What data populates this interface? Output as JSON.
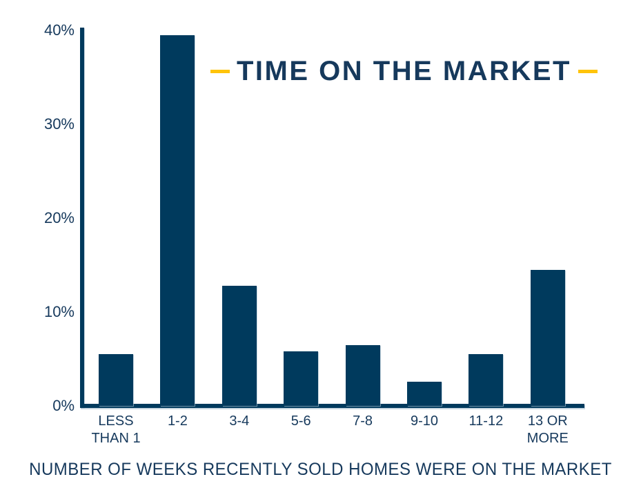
{
  "chart_data": {
    "type": "bar",
    "title": "TIME ON THE MARKET",
    "xlabel": "NUMBER OF WEEKS RECENTLY SOLD HOMES WERE ON THE MARKET",
    "ylabel": "",
    "unit": "%",
    "categories": [
      "LESS\nTHAN 1",
      "1-2",
      "3-4",
      "5-6",
      "7-8",
      "9-10",
      "11-12",
      "13 OR\nMORE"
    ],
    "values": [
      5.5,
      39.5,
      12.8,
      5.8,
      6.5,
      2.6,
      5.5,
      14.5
    ],
    "ylim": [
      0,
      40
    ],
    "ytick_labels": [
      "0%",
      "10%",
      "20%",
      "30%",
      "40%"
    ],
    "ytick_values": [
      0,
      10,
      20,
      30,
      40
    ],
    "grid": false,
    "legend": false,
    "layout_hints": {
      "title_flanked_by_dashes": true,
      "bars_sit_on_thick_navy_axis": true
    },
    "colors": {
      "bar": "#003a5d",
      "text": "#16395c",
      "accent_dash": "#ffc40a",
      "background": "#ffffff"
    }
  }
}
